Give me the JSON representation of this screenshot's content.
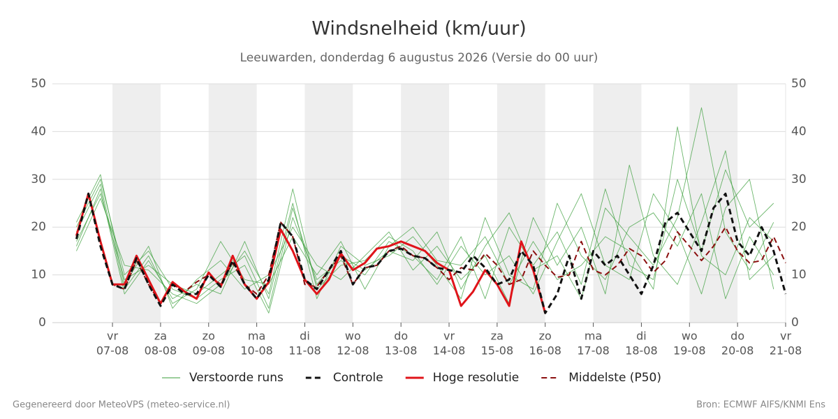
{
  "chart_data": {
    "type": "line",
    "title": "Windsnelheid (km/uur)",
    "subtitle": "Leeuwarden, donderdag  6 augustus 2026 (Versie do 00 uur)",
    "xlim": [
      -1.25,
      14
    ],
    "xticks": [
      {
        "value": 0,
        "label": "07-08"
      },
      {
        "value": 1,
        "label": "08-08"
      },
      {
        "value": 2,
        "label": "09-08"
      },
      {
        "value": 3,
        "label": "10-08"
      },
      {
        "value": 4,
        "label": "11-08"
      },
      {
        "value": 5,
        "label": "12-08"
      },
      {
        "value": 6,
        "label": "13-08"
      },
      {
        "value": 7,
        "label": "14-08"
      },
      {
        "value": 8,
        "label": "15-08"
      },
      {
        "value": 9,
        "label": "16-08"
      },
      {
        "value": 10,
        "label": "17-08"
      },
      {
        "value": 11,
        "label": "18-08"
      },
      {
        "value": 12,
        "label": "19-08"
      },
      {
        "value": 13,
        "label": "20-08"
      },
      {
        "value": 14,
        "label": "21-08"
      }
    ],
    "xtick_days": [
      "vr",
      "za",
      "zo",
      "ma",
      "di",
      "wo",
      "do",
      "vr",
      "za",
      "zo",
      "ma",
      "di",
      "wo",
      "do",
      "vr"
    ],
    "ylim": [
      0,
      50
    ],
    "yticks": [
      0,
      10,
      20,
      30,
      40,
      50
    ],
    "grid": true,
    "x": [
      -0.75,
      -0.5,
      -0.25,
      0,
      0.25,
      0.5,
      0.75,
      1,
      1.25,
      1.5,
      1.75,
      2,
      2.25,
      2.5,
      2.75,
      3,
      3.25,
      3.5,
      3.75,
      4,
      4.25,
      4.5,
      4.75,
      5,
      5.25,
      5.5,
      5.75,
      6,
      6.25,
      6.5,
      6.75,
      7,
      7.25,
      7.5,
      7.75,
      8,
      8.25,
      8.5,
      8.75,
      9,
      9.25,
      9.5,
      9.75,
      10,
      10.25,
      10.5,
      10.75,
      11,
      11.25,
      11.5,
      11.75,
      12,
      12.25,
      12.5,
      12.75,
      13,
      13.25,
      13.5,
      13.75,
      14
    ],
    "ensemble": {
      "name": "Verstoorde runs",
      "color": "#3a9d3a",
      "x": [
        -0.75,
        -0.25,
        0.25,
        0.75,
        1.25,
        1.75,
        2.25,
        2.75,
        3.25,
        3.75,
        4.25,
        4.75,
        5.25,
        5.75,
        6.25,
        6.75,
        7.25,
        7.75,
        8.25,
        8.75,
        9.25,
        9.75,
        10.25,
        10.75,
        11.25,
        11.75,
        12.25,
        12.75,
        13.25,
        13.75
      ],
      "members": [
        [
          20,
          30,
          10,
          15,
          7,
          5,
          9,
          12,
          2,
          22,
          9,
          13,
          10,
          17,
          14,
          9,
          18,
          5,
          20,
          12,
          19,
          8,
          28,
          12,
          9,
          30,
          15,
          32,
          20,
          25
        ],
        [
          16,
          28,
          6,
          13,
          5,
          8,
          6,
          17,
          5,
          25,
          5,
          16,
          12,
          14,
          18,
          12,
          5,
          22,
          10,
          7,
          25,
          14,
          9,
          20,
          23,
          16,
          27,
          5,
          18,
          10
        ],
        [
          21,
          31,
          8,
          16,
          3,
          9,
          13,
          7,
          10,
          20,
          12,
          9,
          14,
          19,
          11,
          16,
          9,
          14,
          4,
          22,
          12,
          20,
          6,
          33,
          14,
          8,
          21,
          36,
          9,
          14
        ],
        [
          15,
          26,
          12,
          11,
          6,
          4,
          8,
          15,
          6,
          28,
          7,
          12,
          13,
          18,
          15,
          8,
          16,
          10,
          14,
          6,
          17,
          27,
          12,
          9,
          27,
          19,
          6,
          24,
          30,
          7
        ],
        [
          19,
          29,
          7,
          14,
          4,
          7,
          17,
          9,
          8,
          18,
          10,
          17,
          7,
          16,
          20,
          13,
          12,
          18,
          8,
          17,
          9,
          12,
          18,
          15,
          7,
          41,
          14,
          10,
          22,
          17
        ],
        [
          17,
          27,
          9,
          12,
          8,
          6,
          10,
          14,
          3,
          24,
          8,
          14,
          11,
          15,
          13,
          19,
          7,
          16,
          23,
          11,
          14,
          5,
          24,
          18,
          12,
          22,
          45,
          19,
          11,
          21
        ]
      ]
    },
    "series": [
      {
        "name": "Controle",
        "color": "#111111",
        "dashed": true,
        "linewidth": 3,
        "values": [
          17.5,
          27,
          16,
          8,
          7,
          13.5,
          8,
          3.5,
          8,
          6,
          6,
          10,
          7.5,
          13,
          8,
          5,
          9,
          21,
          18,
          9,
          7,
          11,
          15,
          8,
          11.5,
          12,
          15,
          15.5,
          14,
          13.5,
          11.5,
          11,
          10.5,
          14,
          11.5,
          8,
          9,
          15,
          12,
          2,
          6,
          14,
          5,
          15,
          12,
          14,
          10,
          6,
          12,
          21,
          23,
          19,
          15,
          24,
          27,
          17,
          14,
          20,
          15,
          6
        ]
      },
      {
        "name": "Hoge resolutie",
        "color": "#e0141a",
        "dashed": false,
        "linewidth": 3,
        "values": [
          18.2,
          27,
          17,
          8,
          8,
          14,
          9,
          4,
          8.5,
          6.5,
          5,
          10.5,
          7.5,
          14,
          8,
          5,
          8.5,
          19.5,
          15,
          9,
          6,
          9,
          14.5,
          11,
          12.5,
          15.5,
          16,
          17,
          16,
          15,
          12.5,
          11,
          3.5,
          6.5,
          11,
          8,
          3.5,
          17,
          11,
          2,
          null,
          null,
          null,
          null,
          null,
          null,
          null,
          null,
          null,
          null,
          null,
          null,
          null,
          null,
          null,
          null,
          null,
          null,
          null,
          null
        ]
      },
      {
        "name": "Middelste (P50)",
        "color": "#8b0f0f",
        "dashed": true,
        "linewidth": 2,
        "values": [
          18,
          27,
          17,
          8,
          7,
          13,
          8,
          4,
          8,
          6.5,
          8.5,
          10,
          8,
          12.5,
          8,
          6,
          10,
          21,
          18,
          8,
          7.5,
          11,
          14,
          8,
          11.5,
          12,
          15,
          16,
          14,
          13.5,
          11.5,
          9,
          11.5,
          11,
          14.5,
          12,
          8,
          9,
          15,
          12,
          9.5,
          10,
          17,
          11,
          10,
          12,
          15.5,
          14,
          10.5,
          13,
          19,
          16,
          13,
          16,
          20,
          15,
          12.5,
          13,
          18,
          12.5
        ]
      }
    ],
    "footer_left": "Gegenereerd door MeteoVPS (meteo-service.nl)",
    "footer_right": "Bron: ECMWF AIFS/KNMI Ens"
  }
}
